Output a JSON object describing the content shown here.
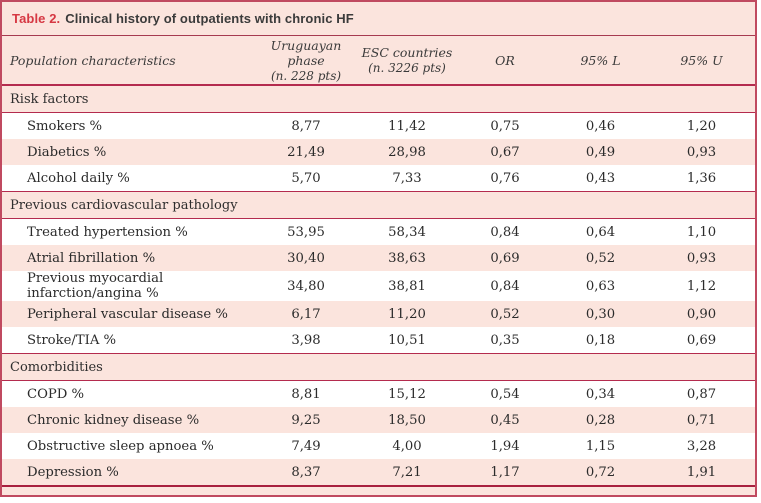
{
  "title": {
    "label": "Table 2.",
    "text": "Clinical history of outpatients with chronic HF"
  },
  "columns": [
    {
      "label": "Population characteristics",
      "sub": ""
    },
    {
      "label": "Uruguayan phase",
      "sub": "(n. 228 pts)"
    },
    {
      "label": "ESC countries",
      "sub": "(n. 3226 pts)"
    },
    {
      "label": "OR",
      "sub": ""
    },
    {
      "label": "95% L",
      "sub": ""
    },
    {
      "label": "95% U",
      "sub": ""
    }
  ],
  "sections": [
    {
      "header": "Risk factors",
      "rows": [
        {
          "label": "Smokers %",
          "values": [
            "8,77",
            "11,42",
            "0,75",
            "0,46",
            "1,20"
          ]
        },
        {
          "label": "Diabetics %",
          "values": [
            "21,49",
            "28,98",
            "0,67",
            "0,49",
            "0,93"
          ]
        },
        {
          "label": "Alcohol daily %",
          "values": [
            "5,70",
            "7,33",
            "0,76",
            "0,43",
            "1,36"
          ]
        }
      ]
    },
    {
      "header": "Previous cardiovascular pathology",
      "rows": [
        {
          "label": "Treated hypertension %",
          "values": [
            "53,95",
            "58,34",
            "0,84",
            "0,64",
            "1,10"
          ]
        },
        {
          "label": "Atrial fibrillation %",
          "values": [
            "30,40",
            "38,63",
            "0,69",
            "0,52",
            "0,93"
          ]
        },
        {
          "label": "Previous myocardial infarction/angina %",
          "values": [
            "34,80",
            "38,81",
            "0,84",
            "0,63",
            "1,12"
          ]
        },
        {
          "label": "Peripheral vascular disease %",
          "values": [
            "6,17",
            "11,20",
            "0,52",
            "0,30",
            "0,90"
          ]
        },
        {
          "label": "Stroke/TIA %",
          "values": [
            "3,98",
            "10,51",
            "0,35",
            "0,18",
            "0,69"
          ]
        }
      ]
    },
    {
      "header": "Comorbidities",
      "rows": [
        {
          "label": "COPD %",
          "values": [
            "8,81",
            "15,12",
            "0,54",
            "0,34",
            "0,87"
          ]
        },
        {
          "label": "Chronic kidney disease %",
          "values": [
            "9,25",
            "18,50",
            "0,45",
            "0,28",
            "0,71"
          ]
        },
        {
          "label": "Obstructive sleep apnoea %",
          "values": [
            "7,49",
            "4,00",
            "1,94",
            "1,15",
            "3,28"
          ]
        },
        {
          "label": "Depression %",
          "values": [
            "8,37",
            "7,21",
            "1,17",
            "0,72",
            "1,91"
          ]
        }
      ]
    }
  ],
  "colors": {
    "background_pink": "#fbe4dd",
    "row_white": "#ffffff",
    "accent_red": "#d63843",
    "line_red": "#b42b4e",
    "border_red": "#c04a60",
    "text_dark": "#2b2b2b"
  }
}
